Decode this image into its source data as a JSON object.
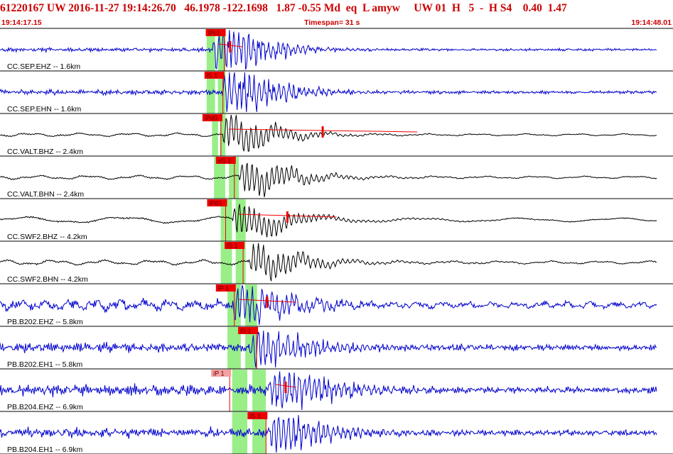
{
  "header": {
    "event_id": "61220167",
    "network": "UW",
    "origin_datetime": "2016-11-27 19:14:26.70",
    "latitude": "46.1978",
    "longitude": "-122.1698",
    "depth": "1.87",
    "magnitude": "-0.55",
    "mag_type": "Md",
    "event_type": "eq",
    "location_flag": "L",
    "analyst": "amyw",
    "quality_fields": "UW 01  H   5  -  H S4",
    "rms": "0.40",
    "erh": "1.47"
  },
  "time_axis": {
    "start_time": "19:14:17.15",
    "end_time": "19:14:48.01",
    "timespan_label": "Timespan=  31 s"
  },
  "colors": {
    "header_text": "#cc0000",
    "trace_blue": "#0000cc",
    "trace_black": "#000000",
    "pick_red": "#ee0000",
    "pick_window": "#99ee88",
    "divider": "#000000"
  },
  "channels": [
    {
      "label": "CC.SEP.EHZ -- 1.6km",
      "color": "blue",
      "pick": "iPc1",
      "pick_time": 0.31,
      "first_arrival": 0.315,
      "window": [
        0.307,
        0.335
      ],
      "noise": 0.35,
      "burst": 1.6,
      "period": "short",
      "fit_line": true,
      "fit_line_end": 0.36
    },
    {
      "label": "CC.SEP.EHN -- 1.6km",
      "color": "blue",
      "pick": "iS 1",
      "pick_time": 0.308,
      "first_arrival": 0.33,
      "window": [
        0.307,
        0.335
      ],
      "noise": 0.45,
      "burst": 1.4,
      "period": "short",
      "fit_line": false
    },
    {
      "label": "CC.VALT.BHZ -- 2.4km",
      "color": "black",
      "pick": "iPd0",
      "pick_time": 0.305,
      "first_arrival": 0.33,
      "window": [
        0.315,
        0.335
      ],
      "noise": 0.35,
      "burst": 1.2,
      "period": "long",
      "fit_line": true,
      "fit_line_end": 0.62
    },
    {
      "label": "CC.VALT.BHN -- 2.4km",
      "color": "black",
      "pick": "eS 2",
      "pick_time": 0.325,
      "first_arrival": 0.355,
      "window": [
        0.318,
        0.355
      ],
      "noise": 0.4,
      "burst": 1.1,
      "period": "long",
      "fit_line": false
    },
    {
      "label": "CC.SWF2.BHZ -- 4.2km",
      "color": "black",
      "pick": "iPd1",
      "pick_time": 0.312,
      "first_arrival": 0.345,
      "window": [
        0.328,
        0.365
      ],
      "noise": 0.55,
      "burst": 1.0,
      "period": "verylong",
      "fit_line": true,
      "fit_line_end": 0.5
    },
    {
      "label": "CC.SWF2.BHN -- 4.2km",
      "color": "black",
      "pick": "iS 1",
      "pick_time": 0.338,
      "first_arrival": 0.37,
      "window": [
        0.328,
        0.365
      ],
      "noise": 0.5,
      "burst": 1.0,
      "period": "long",
      "fit_line": false
    },
    {
      "label": "PB.B202.EHZ -- 5.8km",
      "color": "blue",
      "pick": "iP 1",
      "pick_time": 0.325,
      "first_arrival": 0.345,
      "window": [
        0.338,
        0.382
      ],
      "noise": 0.85,
      "burst": 1.0,
      "period": "mixed",
      "fit_line": true,
      "fit_line_end": 0.44
    },
    {
      "label": "PB.B202.EH1 -- 5.8km",
      "color": "blue",
      "pick": "iS 1",
      "pick_time": 0.358,
      "first_arrival": 0.37,
      "window": [
        0.338,
        0.382
      ],
      "noise": 0.8,
      "burst": 1.0,
      "period": "short",
      "fit_line": false
    },
    {
      "label": "PB.B204.EHZ -- 6.9km",
      "color": "blue",
      "pick": "iP 1",
      "pick_time": 0.318,
      "first_arrival": 0.4,
      "window": [
        0.345,
        0.395
      ],
      "noise": 0.9,
      "burst": 1.0,
      "period": "short",
      "fit_line": true,
      "fit_line_end": 0.44,
      "pick_light": true
    },
    {
      "label": "PB.B204.EH1 -- 6.9km",
      "color": "blue",
      "pick": "iS 1",
      "pick_time": 0.372,
      "first_arrival": 0.4,
      "window": [
        0.345,
        0.395
      ],
      "noise": 0.85,
      "burst": 1.0,
      "period": "short",
      "fit_line": false
    }
  ]
}
